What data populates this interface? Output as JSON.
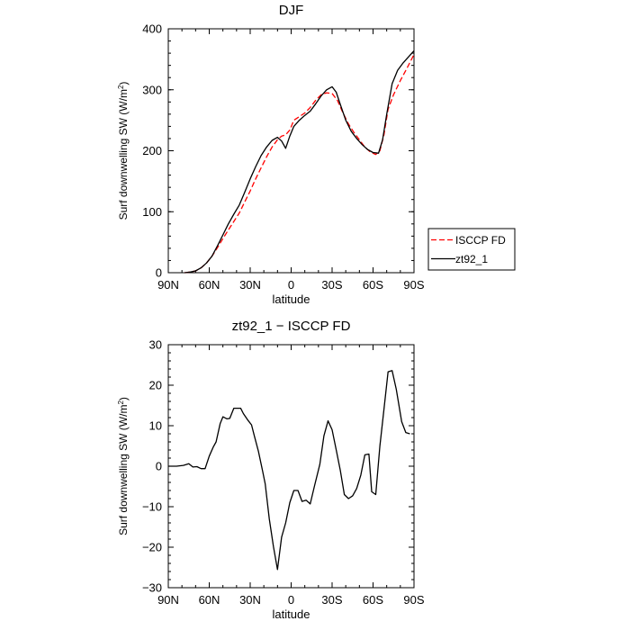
{
  "chart_data": [
    {
      "type": "line",
      "title": "DJF",
      "xlabel": "latitude",
      "ylabel": "Surf downwelling SW (W/m²)",
      "xlim": [
        -90,
        90
      ],
      "ylim": [
        0,
        400
      ],
      "x_ticks": [
        -90,
        -60,
        -30,
        0,
        30,
        60,
        90
      ],
      "x_tick_labels": [
        "90N",
        "60N",
        "30N",
        "0",
        "30S",
        "60S",
        "90S"
      ],
      "y_ticks": [
        0,
        100,
        200,
        300,
        400
      ],
      "y_tick_labels": [
        "0",
        "100",
        "200",
        "300",
        "400"
      ],
      "legend_position": "right",
      "series": [
        {
          "name": "ISCCP FD",
          "color": "#ff0000",
          "dash": "dashed",
          "points": [
            [
              -78,
              0
            ],
            [
              -74,
              1
            ],
            [
              -70,
              3
            ],
            [
              -66,
              8
            ],
            [
              -62,
              16
            ],
            [
              -58,
              27
            ],
            [
              -54,
              41
            ],
            [
              -50,
              56
            ],
            [
              -46,
              70
            ],
            [
              -42,
              84
            ],
            [
              -38,
              98
            ],
            [
              -34,
              116
            ],
            [
              -30,
              134
            ],
            [
              -26,
              154
            ],
            [
              -22,
              172
            ],
            [
              -18,
              190
            ],
            [
              -14,
              206
            ],
            [
              -10,
              218
            ],
            [
              -7,
              224
            ],
            [
              -4,
              226
            ],
            [
              -1,
              234
            ],
            [
              2,
              250
            ],
            [
              6,
              256
            ],
            [
              10,
              262
            ],
            [
              14,
              271
            ],
            [
              18,
              283
            ],
            [
              22,
              292
            ],
            [
              26,
              295
            ],
            [
              30,
              294
            ],
            [
              34,
              282
            ],
            [
              38,
              262
            ],
            [
              42,
              244
            ],
            [
              46,
              230
            ],
            [
              50,
              218
            ],
            [
              54,
              206
            ],
            [
              58,
              198
            ],
            [
              62,
              194
            ],
            [
              65,
              200
            ],
            [
              68,
              226
            ],
            [
              71,
              268
            ],
            [
              75,
              292
            ],
            [
              80,
              315
            ],
            [
              85,
              336
            ],
            [
              90,
              358
            ]
          ]
        },
        {
          "name": "zt92_1",
          "color": "#000000",
          "dash": "solid",
          "points": [
            [
              -78,
              0
            ],
            [
              -74,
              1
            ],
            [
              -70,
              3
            ],
            [
              -66,
              8
            ],
            [
              -62,
              16
            ],
            [
              -58,
              27
            ],
            [
              -54,
              44
            ],
            [
              -50,
              62
            ],
            [
              -46,
              80
            ],
            [
              -42,
              96
            ],
            [
              -38,
              111
            ],
            [
              -34,
              132
            ],
            [
              -30,
              154
            ],
            [
              -26,
              174
            ],
            [
              -22,
              192
            ],
            [
              -18,
              206
            ],
            [
              -14,
              217
            ],
            [
              -10,
              222
            ],
            [
              -7,
              216
            ],
            [
              -4,
              204
            ],
            [
              -1,
              224
            ],
            [
              2,
              240
            ],
            [
              6,
              250
            ],
            [
              10,
              258
            ],
            [
              14,
              265
            ],
            [
              18,
              277
            ],
            [
              22,
              290
            ],
            [
              26,
              300
            ],
            [
              30,
              305
            ],
            [
              33,
              296
            ],
            [
              36,
              276
            ],
            [
              40,
              250
            ],
            [
              44,
              232
            ],
            [
              48,
              220
            ],
            [
              52,
              210
            ],
            [
              56,
              202
            ],
            [
              60,
              197
            ],
            [
              64,
              196
            ],
            [
              67,
              218
            ],
            [
              70,
              260
            ],
            [
              74,
              310
            ],
            [
              78,
              332
            ],
            [
              82,
              344
            ],
            [
              86,
              354
            ],
            [
              90,
              364
            ]
          ]
        }
      ]
    },
    {
      "type": "line",
      "title": "zt92_1 − ISCCP FD",
      "xlabel": "latitude",
      "ylabel": "Surf downwelling SW (W/m²)",
      "xlim": [
        -90,
        90
      ],
      "ylim": [
        -30,
        30
      ],
      "x_ticks": [
        -90,
        -60,
        -30,
        0,
        30,
        60,
        90
      ],
      "x_tick_labels": [
        "90N",
        "60N",
        "30N",
        "0",
        "30S",
        "60S",
        "90S"
      ],
      "y_ticks": [
        -30,
        -20,
        -10,
        0,
        10,
        20,
        30
      ],
      "y_tick_labels": [
        "−30",
        "−20",
        "−10",
        "0",
        "10",
        "20",
        "30"
      ],
      "series": [
        {
          "color": "#000000",
          "dash": "solid",
          "points": [
            [
              -90,
              0
            ],
            [
              -84,
              0
            ],
            [
              -79,
              0.2
            ],
            [
              -75,
              0.6
            ],
            [
              -72,
              -0.2
            ],
            [
              -69,
              -0.1
            ],
            [
              -66,
              -0.6
            ],
            [
              -63,
              -0.6
            ],
            [
              -60,
              2.5
            ],
            [
              -57,
              4.8
            ],
            [
              -55,
              6
            ],
            [
              -52,
              10.5
            ],
            [
              -50,
              12.2
            ],
            [
              -47,
              11.7
            ],
            [
              -45,
              11.8
            ],
            [
              -42,
              14.3
            ],
            [
              -39,
              14.3
            ],
            [
              -37,
              14.3
            ],
            [
              -35,
              13
            ],
            [
              -32,
              11.5
            ],
            [
              -29,
              10.2
            ],
            [
              -27,
              7.5
            ],
            [
              -24,
              3.7
            ],
            [
              -21,
              -1
            ],
            [
              -19,
              -4.4
            ],
            [
              -16,
              -13
            ],
            [
              -13,
              -19.8
            ],
            [
              -10,
              -25.5
            ],
            [
              -7,
              -17.5
            ],
            [
              -4,
              -14
            ],
            [
              -1,
              -9
            ],
            [
              2,
              -6
            ],
            [
              5,
              -6
            ],
            [
              8,
              -8.7
            ],
            [
              11,
              -8.4
            ],
            [
              14,
              -9.3
            ],
            [
              17,
              -5
            ],
            [
              21,
              0.5
            ],
            [
              24,
              7.5
            ],
            [
              27,
              11.2
            ],
            [
              30,
              9
            ],
            [
              33,
              4
            ],
            [
              36,
              -1
            ],
            [
              39,
              -7
            ],
            [
              42,
              -8
            ],
            [
              45,
              -7.3
            ],
            [
              48,
              -5.5
            ],
            [
              51,
              -2.2
            ],
            [
              54,
              2.8
            ],
            [
              57,
              3
            ],
            [
              59,
              -6.3
            ],
            [
              62,
              -7
            ],
            [
              65,
              5
            ],
            [
              68,
              14
            ],
            [
              71,
              23.3
            ],
            [
              74,
              23.6
            ],
            [
              77,
              19
            ],
            [
              81,
              11
            ],
            [
              84,
              8.3
            ],
            [
              87,
              8
            ]
          ]
        }
      ]
    }
  ]
}
